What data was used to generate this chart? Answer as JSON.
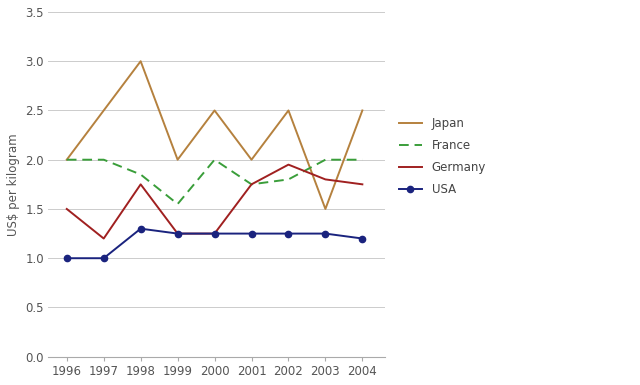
{
  "years": [
    1996,
    1997,
    1998,
    1999,
    2000,
    2001,
    2002,
    2003,
    2004
  ],
  "japan": [
    2.0,
    2.5,
    3.0,
    2.0,
    2.5,
    2.0,
    2.5,
    1.5,
    2.5
  ],
  "france": [
    2.0,
    2.0,
    1.85,
    1.55,
    2.0,
    1.75,
    1.8,
    2.0,
    2.0
  ],
  "germany": [
    1.5,
    1.2,
    1.75,
    1.25,
    1.25,
    1.75,
    1.95,
    1.8,
    1.75
  ],
  "usa": [
    1.0,
    1.0,
    1.3,
    1.25,
    1.25,
    1.25,
    1.25,
    1.25,
    1.2
  ],
  "japan_color": "#b5813e",
  "france_color": "#3a9e3a",
  "germany_color": "#a02020",
  "usa_color": "#1a237e",
  "ylabel": "US$ per kilogram",
  "ylim": [
    0,
    3.5
  ],
  "yticks": [
    0,
    0.5,
    1.0,
    1.5,
    2.0,
    2.5,
    3.0,
    3.5
  ],
  "bg_color": "#ffffff",
  "grid_color": "#cccccc",
  "legend_entries": [
    "Japan",
    "France",
    "Germany",
    "USA"
  ]
}
